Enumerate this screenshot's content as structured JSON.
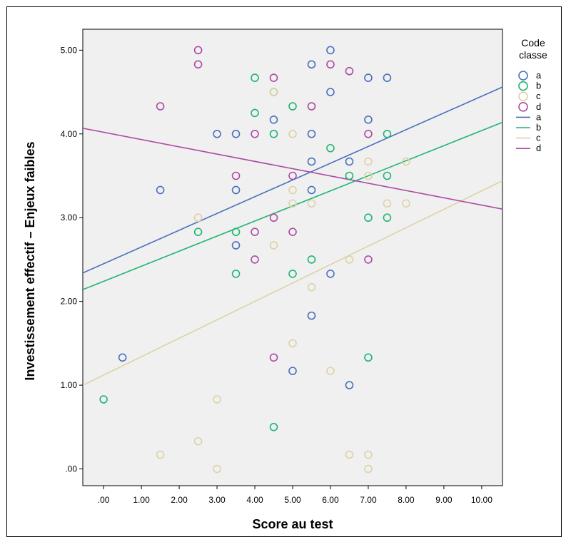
{
  "chart_data": {
    "type": "scatter",
    "title": "",
    "xlabel": "Score au test",
    "ylabel": "Investissement effectif – Enjeux faibles",
    "xlim": [
      -0.55,
      10.55
    ],
    "ylim": [
      -0.2,
      5.25
    ],
    "x_ticks": [
      0,
      1,
      2,
      3,
      4,
      5,
      6,
      7,
      8,
      9,
      10
    ],
    "x_tick_labels": [
      ".00",
      "1.00",
      "2.00",
      "3.00",
      "4.00",
      "5.00",
      "6.00",
      "7.00",
      "8.00",
      "9.00",
      "10.00"
    ],
    "y_ticks": [
      0,
      1,
      2,
      3,
      4,
      5
    ],
    "y_tick_labels": [
      ".00",
      "1.00",
      "2.00",
      "3.00",
      "4.00",
      "5.00"
    ],
    "grid": false,
    "legend": {
      "title_line1": "Code",
      "title_line2": "classe",
      "position": "right"
    },
    "series": [
      {
        "name": "a",
        "color": "#4a6fbf",
        "points": [
          [
            0.5,
            1.33
          ],
          [
            1.5,
            3.33
          ],
          [
            3,
            4
          ],
          [
            3.5,
            4
          ],
          [
            3.5,
            3.33
          ],
          [
            3.5,
            2.67
          ],
          [
            4.5,
            4.17
          ],
          [
            5,
            1.17
          ],
          [
            5.5,
            4.83
          ],
          [
            5.5,
            4
          ],
          [
            5.5,
            3.67
          ],
          [
            5.5,
            3.33
          ],
          [
            5.5,
            1.83
          ],
          [
            6,
            5
          ],
          [
            6,
            4.5
          ],
          [
            6,
            2.33
          ],
          [
            6.5,
            3.67
          ],
          [
            6.5,
            1
          ],
          [
            7,
            4.67
          ],
          [
            7,
            4.17
          ],
          [
            7.5,
            4.67
          ]
        ],
        "fit": {
          "intercept": 2.45,
          "slope": 0.2
        }
      },
      {
        "name": "b",
        "color": "#1fb574",
        "points": [
          [
            0,
            0.83
          ],
          [
            2.5,
            2.83
          ],
          [
            3.5,
            2.83
          ],
          [
            3.5,
            2.33
          ],
          [
            4,
            4.67
          ],
          [
            4,
            4.25
          ],
          [
            4.5,
            4.5
          ],
          [
            4.5,
            4
          ],
          [
            4.5,
            0.5
          ],
          [
            5,
            4.33
          ],
          [
            5,
            2.33
          ],
          [
            5.5,
            2.5
          ],
          [
            6,
            3.83
          ],
          [
            6.5,
            3.5
          ],
          [
            7,
            3
          ],
          [
            7,
            1.33
          ],
          [
            7.5,
            4
          ],
          [
            7.5,
            3.5
          ],
          [
            7.5,
            3
          ]
        ],
        "fit": {
          "intercept": 2.24,
          "slope": 0.18
        }
      },
      {
        "name": "c",
        "color": "#ddd2a6",
        "points": [
          [
            1.5,
            0.17
          ],
          [
            2.5,
            3
          ],
          [
            2.5,
            0.33
          ],
          [
            3,
            0.83
          ],
          [
            3,
            0
          ],
          [
            4.5,
            4.5
          ],
          [
            4.5,
            2.67
          ],
          [
            5,
            4
          ],
          [
            5,
            3.33
          ],
          [
            5,
            3.17
          ],
          [
            5,
            1.5
          ],
          [
            5.5,
            3.17
          ],
          [
            5.5,
            2.17
          ],
          [
            6,
            1.17
          ],
          [
            6.5,
            2.5
          ],
          [
            6.5,
            0.17
          ],
          [
            7,
            3.67
          ],
          [
            7,
            3.5
          ],
          [
            7,
            0.17
          ],
          [
            7,
            0
          ],
          [
            7.5,
            3.17
          ],
          [
            8,
            3.67
          ],
          [
            8,
            3.17
          ]
        ],
        "fit": {
          "intercept": 1.12,
          "slope": 0.22
        }
      },
      {
        "name": "d",
        "color": "#ad4ba2",
        "points": [
          [
            1.5,
            4.33
          ],
          [
            2.5,
            5
          ],
          [
            2.5,
            4.83
          ],
          [
            3.5,
            3.5
          ],
          [
            4,
            4
          ],
          [
            4,
            2.83
          ],
          [
            4,
            2.5
          ],
          [
            4.5,
            4.67
          ],
          [
            4.5,
            3
          ],
          [
            4.5,
            1.33
          ],
          [
            5,
            3.5
          ],
          [
            5,
            2.83
          ],
          [
            5.5,
            4.33
          ],
          [
            6,
            4.83
          ],
          [
            6.5,
            4.75
          ],
          [
            7,
            4
          ],
          [
            7,
            2.5
          ]
        ],
        "fit": {
          "intercept": 4.02,
          "slope": -0.087
        }
      }
    ]
  }
}
